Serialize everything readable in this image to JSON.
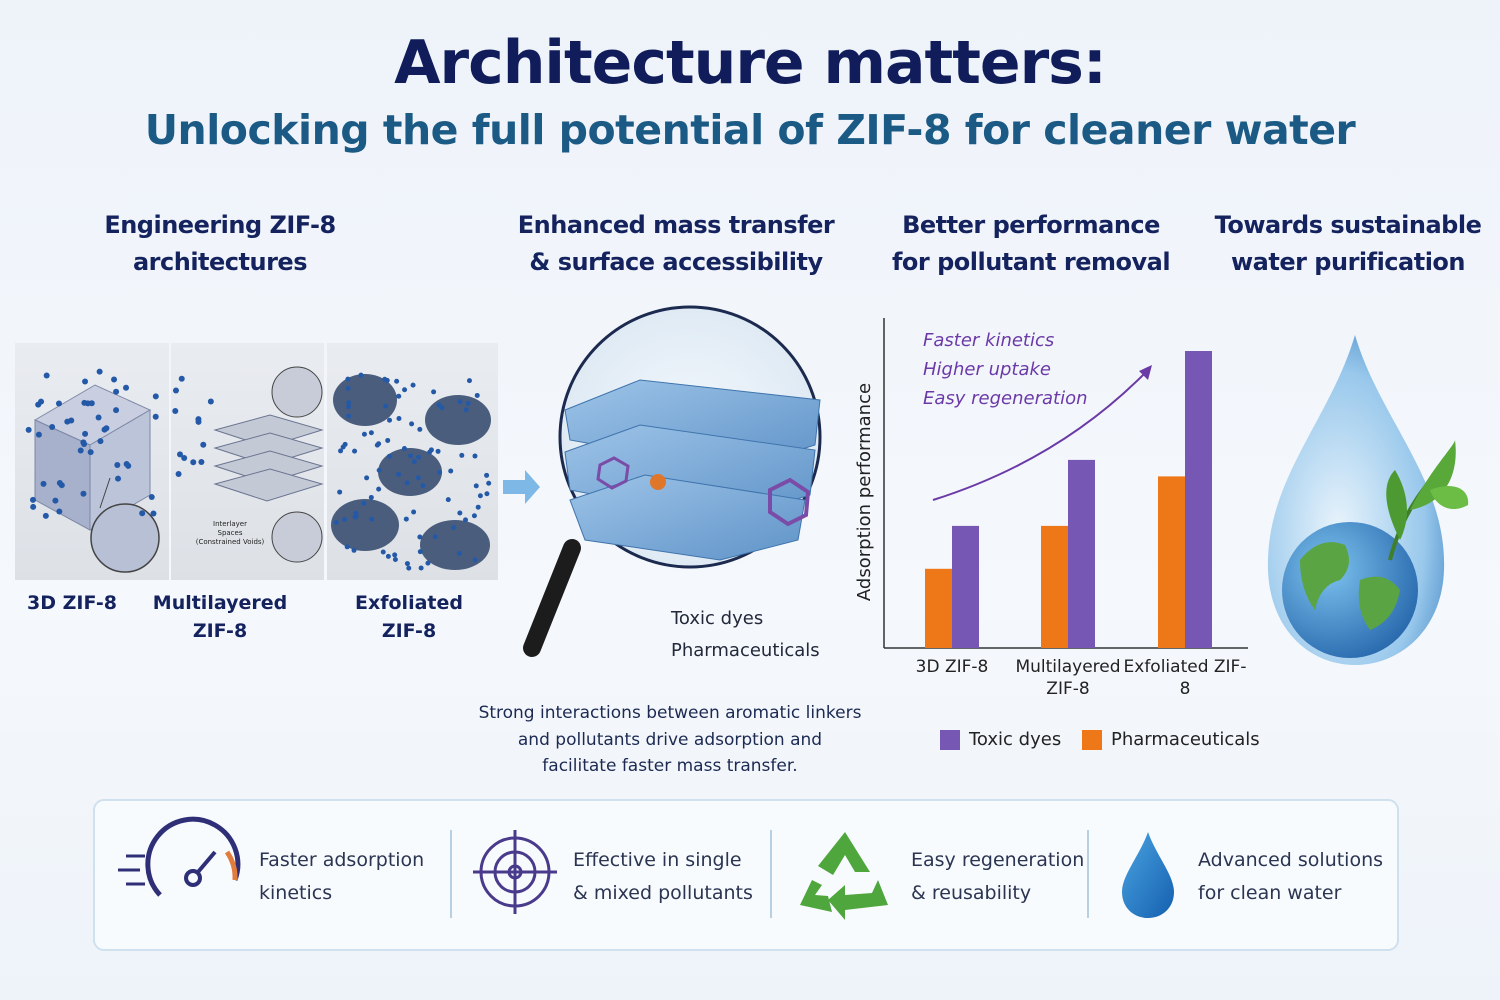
{
  "header": {
    "title": "Architecture matters:",
    "subtitle": "Unlocking the full potential of ZIF-8 for cleaner water"
  },
  "columns": [
    {
      "heading": [
        "Engineering ZIF-8",
        "architectures"
      ]
    },
    {
      "heading": [
        "Enhanced mass transfer",
        "& surface accessibility"
      ]
    },
    {
      "heading": [
        "Better performance",
        "for pollutant removal"
      ]
    },
    {
      "heading": [
        "Towards sustainable",
        "water purification"
      ]
    }
  ],
  "architectures": {
    "labels": [
      [
        "3D ZIF-8"
      ],
      [
        "Multilayered",
        "ZIF-8"
      ],
      [
        "Exfoliated",
        "ZIF-8"
      ]
    ],
    "inset_label": [
      "Interlayer",
      "Spaces",
      "(Constrained Voids)"
    ]
  },
  "magnifier": {
    "labels": [
      "Toxic dyes",
      "Pharmaceuticals"
    ],
    "caption": [
      "Strong interactions between aromatic linkers",
      "and pollutants drive adsorption and",
      "facilitate faster mass transfer."
    ]
  },
  "chart_data": {
    "type": "bar",
    "y_label": "Adsorption performance",
    "annotations": [
      "Faster kinetics",
      "Higher uptake",
      "Easy regeneration"
    ],
    "categories": [
      "3D ZIF-8",
      "Multilayered ZIF-8",
      "Exfoliated ZIF-8"
    ],
    "series": [
      {
        "name": "Toxic dyes",
        "color": "#7657b4",
        "values": [
          37,
          57,
          90
        ]
      },
      {
        "name": "Pharmaceuticals",
        "color": "#ee7818",
        "values": [
          24,
          37,
          52
        ]
      }
    ],
    "ylim": [
      0,
      100
    ]
  },
  "features": [
    {
      "text": [
        "Faster adsorption",
        "kinetics"
      ]
    },
    {
      "text": [
        "Effective in single",
        "& mixed pollutants"
      ]
    },
    {
      "text": [
        "Easy regeneration",
        "& reusability"
      ]
    },
    {
      "text": [
        "Advanced solutions",
        "for clean water"
      ]
    }
  ]
}
